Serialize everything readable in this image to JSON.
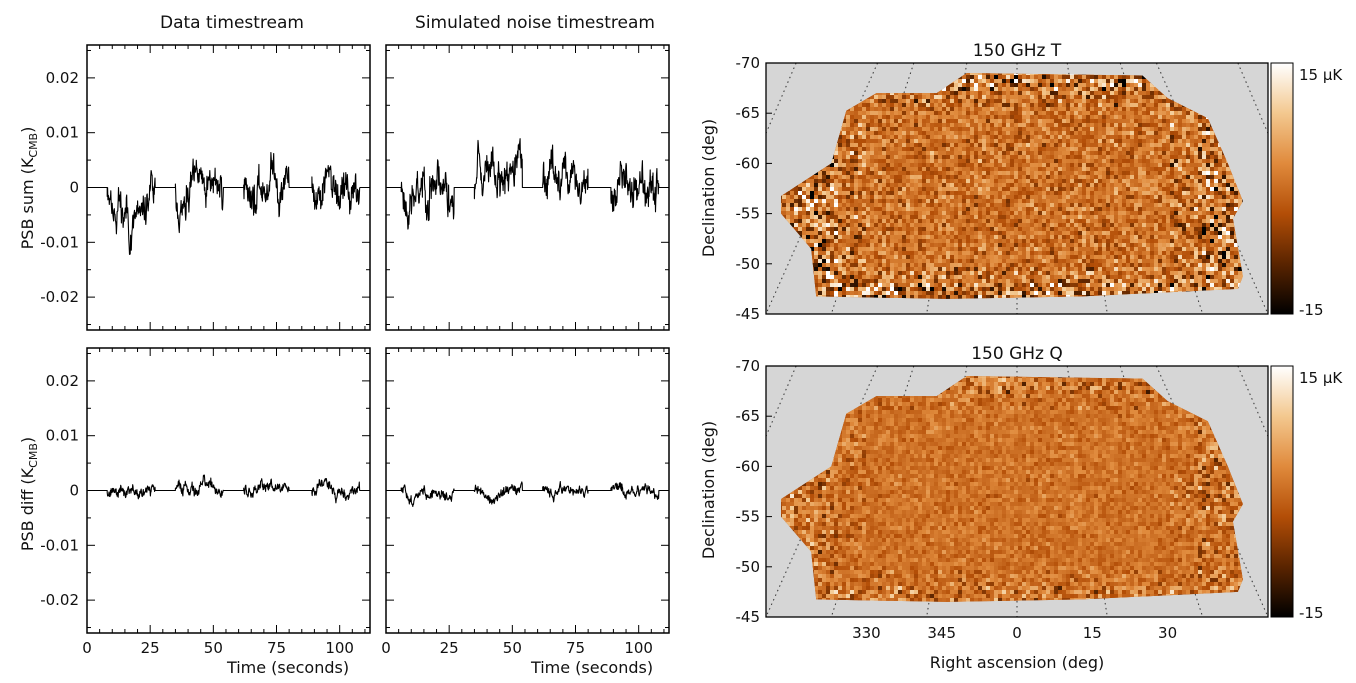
{
  "chart_data": [
    {
      "type": "line",
      "title": "Data timestream",
      "ylabel": "PSB sum (K",
      "ylabel_sub": "CMB",
      "ylabel_close": ")",
      "xlabel": "",
      "xlim": [
        0,
        112
      ],
      "ylim": [
        -0.026,
        0.026
      ],
      "xticks": [
        "0",
        "25",
        "50",
        "75",
        "100"
      ],
      "xtick_values": [
        0,
        25,
        50,
        75,
        100
      ],
      "yticks": [
        "-0.02",
        "-0.01",
        "0",
        "0.01",
        "0.02"
      ],
      "ytick_values": [
        -0.02,
        -0.01,
        0,
        0.01,
        0.02
      ],
      "segments": [
        [
          8,
          27
        ],
        [
          35,
          54
        ],
        [
          62,
          80
        ],
        [
          89,
          108
        ]
      ],
      "amplitude": 0.012,
      "seed": 11
    },
    {
      "type": "line",
      "title": "Simulated noise timestream",
      "ylabel": "",
      "xlabel": "",
      "xlim": [
        0,
        112
      ],
      "ylim": [
        -0.026,
        0.026
      ],
      "xticks": [
        "0",
        "25",
        "50",
        "75",
        "100"
      ],
      "xtick_values": [
        0,
        25,
        50,
        75,
        100
      ],
      "segments": [
        [
          6,
          27
        ],
        [
          35,
          54
        ],
        [
          62,
          80
        ],
        [
          89,
          108
        ]
      ],
      "amplitude": 0.013,
      "seed": 23
    },
    {
      "type": "line",
      "title": "",
      "ylabel": "PSB diff (K",
      "ylabel_sub": "CMB",
      "ylabel_close": ")",
      "xlabel": "Time (seconds)",
      "xlim": [
        0,
        112
      ],
      "ylim": [
        -0.026,
        0.026
      ],
      "xticks": [
        "0",
        "25",
        "50",
        "75",
        "100"
      ],
      "xtick_values": [
        0,
        25,
        50,
        75,
        100
      ],
      "yticks": [
        "-0.02",
        "-0.01",
        "0",
        "0.01",
        "0.02"
      ],
      "ytick_values": [
        -0.02,
        -0.01,
        0,
        0.01,
        0.02
      ],
      "segments": [
        [
          8,
          27
        ],
        [
          35,
          54
        ],
        [
          62,
          80
        ],
        [
          89,
          108
        ]
      ],
      "amplitude": 0.004,
      "seed": 37
    },
    {
      "type": "line",
      "title": "",
      "ylabel": "",
      "xlabel": "Time (seconds)",
      "xlim": [
        0,
        112
      ],
      "ylim": [
        -0.026,
        0.026
      ],
      "xticks": [
        "0",
        "25",
        "50",
        "75",
        "100"
      ],
      "xtick_values": [
        0,
        25,
        50,
        75,
        100
      ],
      "segments": [
        [
          6,
          27
        ],
        [
          35,
          54
        ],
        [
          62,
          80
        ],
        [
          89,
          108
        ]
      ],
      "amplitude": 0.0035,
      "seed": 51
    },
    {
      "type": "heatmap",
      "title": "150 GHz T",
      "ylabel": "Declination (deg)",
      "xlabel": "",
      "yticks": [
        "-70",
        "-65",
        "-60",
        "-55",
        "-50",
        "-45"
      ],
      "ytick_values": [
        -70,
        -65,
        -60,
        -55,
        -50,
        -45
      ],
      "ylim": [
        -70,
        -45
      ],
      "colorbar": {
        "max_label": "15 μK",
        "min_label": "-15",
        "colors": [
          "#000000",
          "#5a2400",
          "#b34e07",
          "#e08a3c",
          "#f3c88f",
          "#ffffff"
        ]
      },
      "background": "#d6d6d6",
      "contrast": 1.0,
      "seed": 71
    },
    {
      "type": "heatmap",
      "title": "150 GHz Q",
      "ylabel": "Declination (deg)",
      "xlabel": "Right ascension (deg)",
      "yticks": [
        "-70",
        "-65",
        "-60",
        "-55",
        "-50",
        "-45"
      ],
      "ytick_values": [
        -70,
        -65,
        -60,
        -55,
        -50,
        -45
      ],
      "ylim": [
        -70,
        -45
      ],
      "xticks": [
        "330",
        "345",
        "0",
        "15",
        "30"
      ],
      "colorbar": {
        "max_label": "15 μK",
        "min_label": "-15",
        "colors": [
          "#000000",
          "#5a2400",
          "#b34e07",
          "#e08a3c",
          "#f3c88f",
          "#ffffff"
        ]
      },
      "background": "#d6d6d6",
      "contrast": 0.55,
      "seed": 97
    }
  ]
}
